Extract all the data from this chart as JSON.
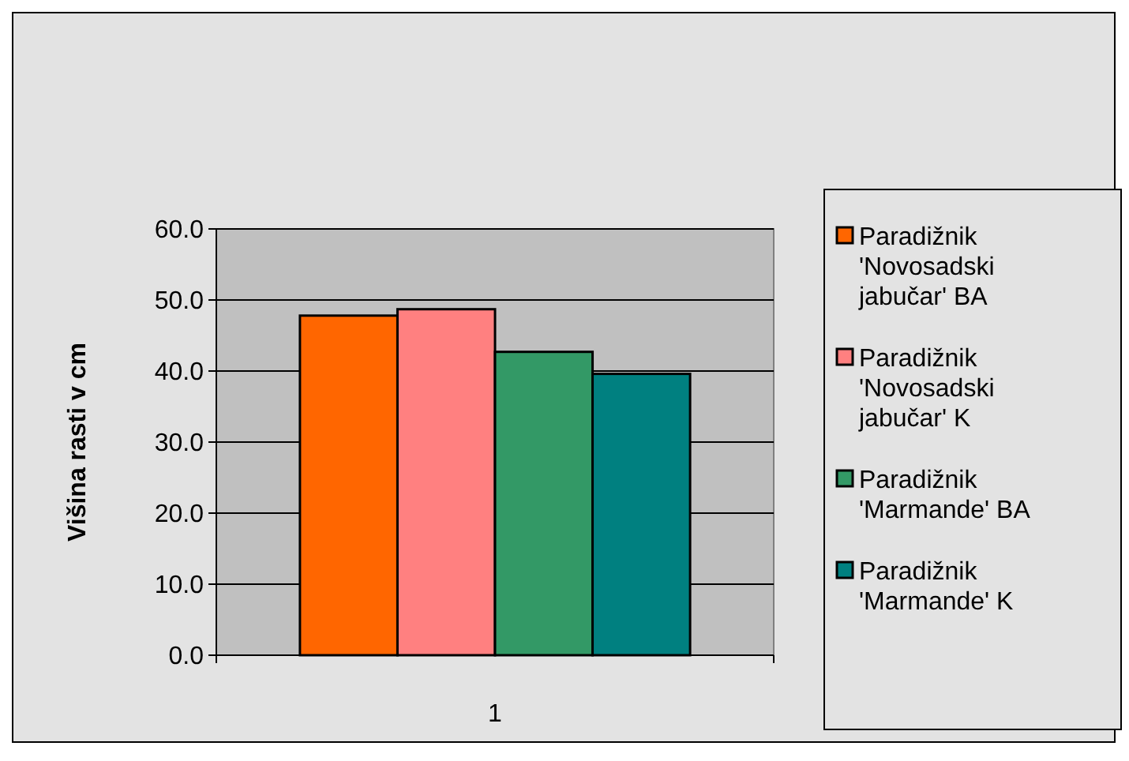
{
  "chart_data": {
    "type": "bar",
    "ylabel": "Višina rasti v cm",
    "categories": [
      "1"
    ],
    "series": [
      {
        "name": "Paradižnik 'Novosadski jabučar' BA",
        "color": "#ff6600",
        "values": [
          47.8
        ]
      },
      {
        "name": "Paradižnik 'Novosadski jabučar' K",
        "color": "#ff8080",
        "values": [
          48.7
        ]
      },
      {
        "name": "Paradižnik 'Marmande' BA",
        "color": "#339966",
        "values": [
          42.7
        ]
      },
      {
        "name": "Paradižnik 'Marmande' K",
        "color": "#008080",
        "values": [
          39.6
        ]
      }
    ],
    "ylim": [
      0,
      60
    ],
    "yticks": [
      {
        "value": 0,
        "label": "0.0"
      },
      {
        "value": 10,
        "label": "10.0"
      },
      {
        "value": 20,
        "label": "20.0"
      },
      {
        "value": 30,
        "label": "30.0"
      },
      {
        "value": 40,
        "label": "40.0"
      },
      {
        "value": 50,
        "label": "50.0"
      },
      {
        "value": 60,
        "label": "60.0"
      }
    ],
    "grid": "y",
    "legend": "right"
  }
}
